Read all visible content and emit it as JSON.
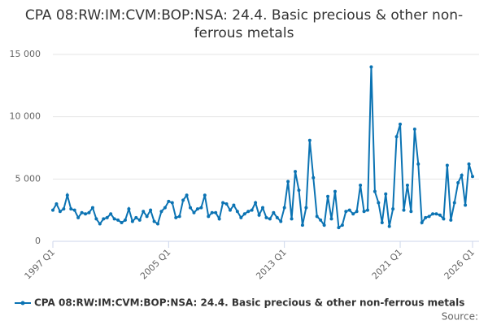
{
  "chart_data": {
    "type": "line",
    "title": "CPA 08:RW:IM:CVM:BOP:NSA: 24.4. Basic precious & other non-ferrous metals",
    "source": "Source:",
    "categories": [
      "1997 Q1",
      null,
      null,
      null,
      null,
      null,
      null,
      null,
      null,
      null,
      null,
      null,
      null,
      null,
      null,
      null,
      null,
      null,
      null,
      null,
      null,
      null,
      null,
      null,
      null,
      null,
      null,
      null,
      null,
      null,
      null,
      null,
      "2005 Q1",
      null,
      null,
      null,
      null,
      null,
      null,
      null,
      null,
      null,
      null,
      null,
      null,
      null,
      null,
      null,
      null,
      null,
      null,
      null,
      null,
      null,
      null,
      null,
      null,
      null,
      null,
      null,
      null,
      null,
      null,
      null,
      "2013 Q1",
      null,
      null,
      null,
      null,
      null,
      null,
      null,
      null,
      null,
      null,
      null,
      null,
      null,
      null,
      null,
      null,
      null,
      null,
      null,
      null,
      null,
      null,
      null,
      null,
      null,
      null,
      null,
      null,
      null,
      null,
      null,
      "2021 Q1",
      null,
      null,
      null,
      null,
      null,
      null,
      null,
      null,
      null,
      null,
      null,
      null,
      null,
      null,
      null,
      null,
      null,
      null,
      null,
      "2026 Q1"
    ],
    "series": [
      {
        "name": "CPA 08:RW:IM:CVM:BOP:NSA: 24.4. Basic precious & other non-ferrous metals",
        "color": "#0b73b3",
        "values": [
          2500,
          3000,
          2400,
          2600,
          3700,
          2600,
          2500,
          1900,
          2300,
          2200,
          2300,
          2700,
          1800,
          1400,
          1800,
          1900,
          2200,
          1800,
          1700,
          1500,
          1700,
          2600,
          1600,
          1900,
          1700,
          2400,
          2000,
          2500,
          1600,
          1400,
          2400,
          2700,
          3200,
          3100,
          1900,
          2000,
          3300,
          3700,
          2700,
          2300,
          2600,
          2700,
          3700,
          2000,
          2300,
          2300,
          1800,
          3100,
          3000,
          2500,
          2900,
          2400,
          1900,
          2200,
          2400,
          2500,
          3100,
          2100,
          2700,
          1900,
          1800,
          2300,
          1900,
          1600,
          2700,
          4800,
          1800,
          5600,
          4100,
          1300,
          2700,
          8100,
          5100,
          2000,
          1700,
          1300,
          3600,
          1800,
          4000,
          1100,
          1300,
          2400,
          2500,
          2200,
          2400,
          4500,
          2400,
          2500,
          14000,
          4000,
          3100,
          1500,
          3800,
          1200,
          2600,
          8400,
          9400,
          2500,
          4500,
          2400,
          9000,
          6200,
          1500,
          1900,
          2000,
          2200,
          2200,
          2100,
          1800,
          6100,
          1700,
          3100,
          4700,
          5300,
          2900,
          6200,
          5200
        ]
      }
    ],
    "ylim": [
      0,
      15000
    ],
    "yticks": [
      0,
      {
        "value": 5000,
        "label": "5 000"
      },
      {
        "value": 10000,
        "label": "10 000"
      },
      {
        "value": 15000,
        "label": "15 000"
      }
    ],
    "grid": true
  }
}
